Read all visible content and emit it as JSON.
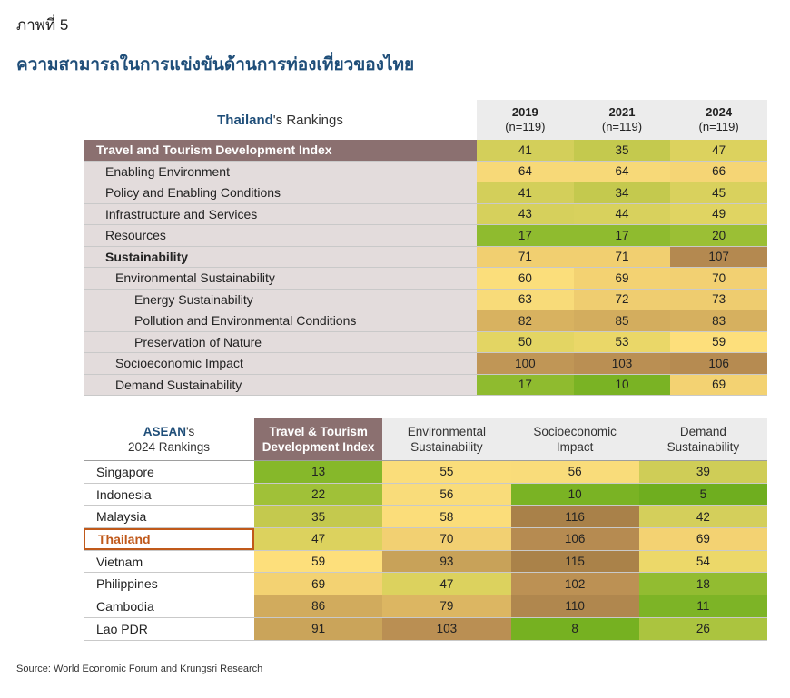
{
  "figure": {
    "label": "ภาพที่ 5",
    "title": "ความสามารถในการแข่งขันด้านการท่องเที่ยวของไทย",
    "source": "Source: World Economic Forum and Krungsri Research"
  },
  "table1": {
    "heading_country": "Thailand",
    "heading_rest": "'s Rankings",
    "columns": [
      {
        "year": "2019",
        "n": "(n=119)"
      },
      {
        "year": "2021",
        "n": "(n=119)"
      },
      {
        "year": "2024",
        "n": "(n=119)"
      }
    ],
    "rows": [
      {
        "label": "Travel and Tourism Development Index",
        "values": [
          "41",
          "35",
          "47"
        ],
        "colors": [
          "#d3cf5a",
          "#c4c94e",
          "#dcd25e"
        ]
      },
      {
        "label": "Enabling Environment",
        "values": [
          "64",
          "64",
          "66"
        ],
        "colors": [
          "#f7d978",
          "#f7d978",
          "#f5d575"
        ]
      },
      {
        "label": "Policy and Enabling Conditions",
        "values": [
          "41",
          "34",
          "45"
        ],
        "colors": [
          "#d3cf5a",
          "#c4c94e",
          "#d9d15d"
        ]
      },
      {
        "label": "Infrastructure and Services",
        "values": [
          "43",
          "44",
          "49"
        ],
        "colors": [
          "#d6d05c",
          "#d8d15d",
          "#e0d462"
        ]
      },
      {
        "label": "Resources",
        "values": [
          "17",
          "17",
          "20"
        ],
        "colors": [
          "#8fbb2f",
          "#8fbb2f",
          "#9bbf35"
        ]
      },
      {
        "label": "Sustainability",
        "values": [
          "71",
          "71",
          "107"
        ],
        "colors": [
          "#f1cf70",
          "#f1cf70",
          "#b48950"
        ]
      },
      {
        "label": "Environmental Sustainability",
        "values": [
          "60",
          "69",
          "70"
        ],
        "colors": [
          "#fbde7b",
          "#f3d272",
          "#f2d072"
        ]
      },
      {
        "label": "Energy Sustainability",
        "values": [
          "63",
          "72",
          "73"
        ],
        "colors": [
          "#f8db79",
          "#efcd70",
          "#eecc6f"
        ]
      },
      {
        "label": "Pollution and Environmental Conditions",
        "values": [
          "82",
          "85",
          "83"
        ],
        "colors": [
          "#d8b260",
          "#d3ad5e",
          "#d6b05f"
        ]
      },
      {
        "label": "Preservation of Nature",
        "values": [
          "50",
          "53",
          "59"
        ],
        "colors": [
          "#e3d563",
          "#ead768",
          "#fddf7b"
        ]
      },
      {
        "label": "Socioeconomic Impact",
        "values": [
          "100",
          "103",
          "106"
        ],
        "colors": [
          "#c09656",
          "#ba8f53",
          "#b68b51"
        ]
      },
      {
        "label": "Demand Sustainability",
        "values": [
          "17",
          "10",
          "69"
        ],
        "colors": [
          "#8fbb2f",
          "#7ab324",
          "#f3d272"
        ]
      }
    ]
  },
  "table2": {
    "heading_region": "ASEAN",
    "heading_rest": "'s",
    "heading_line2": "2024 Rankings",
    "columns": [
      {
        "line1": "Travel & Tourism",
        "line2": "Development Index"
      },
      {
        "line1": "Environmental",
        "line2": "Sustainability"
      },
      {
        "line1": "Socioeconomic",
        "line2": "Impact"
      },
      {
        "line1": "Demand",
        "line2": "Sustainability"
      }
    ],
    "rows": [
      {
        "country": "Singapore",
        "values": [
          "13",
          "55",
          "56",
          "39"
        ],
        "colors": [
          "#86b82a",
          "#fadd7a",
          "#f9dc7a",
          "#cfcd57"
        ]
      },
      {
        "country": "Indonesia",
        "values": [
          "22",
          "56",
          "10",
          "5"
        ],
        "colors": [
          "#a0c138",
          "#f9dc7a",
          "#7ab324",
          "#6fae1f"
        ]
      },
      {
        "country": "Malaysia",
        "values": [
          "35",
          "58",
          "116",
          "42"
        ],
        "colors": [
          "#c4c94e",
          "#fbdd7a",
          "#a98149",
          "#d4cf5b"
        ]
      },
      {
        "country": "Thailand",
        "values": [
          "47",
          "70",
          "106",
          "69"
        ],
        "colors": [
          "#dcd25e",
          "#f2d072",
          "#b68b51",
          "#f3d272"
        ]
      },
      {
        "country": "Vietnam",
        "values": [
          "59",
          "93",
          "115",
          "54"
        ],
        "colors": [
          "#fddf7b",
          "#c8a259",
          "#aa8249",
          "#ecd869"
        ]
      },
      {
        "country": "Philippines",
        "values": [
          "69",
          "47",
          "102",
          "18"
        ],
        "colors": [
          "#f3d272",
          "#dcd25e",
          "#bc9154",
          "#92bc31"
        ]
      },
      {
        "country": "Cambodia",
        "values": [
          "86",
          "79",
          "110",
          "11"
        ],
        "colors": [
          "#d1ab5d",
          "#dcb662",
          "#b0874e",
          "#7db426"
        ]
      },
      {
        "country": "Lao PDR",
        "values": [
          "91",
          "103",
          "8",
          "26"
        ],
        "colors": [
          "#caa45a",
          "#ba8f53",
          "#76b121",
          "#abc43f"
        ]
      }
    ]
  }
}
